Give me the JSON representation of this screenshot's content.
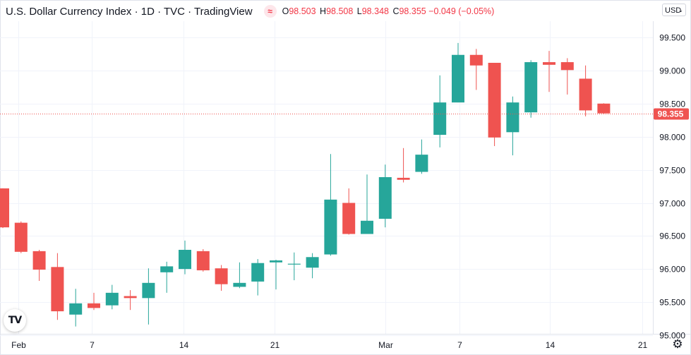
{
  "header": {
    "title": "U.S. Dollar Currency Index · 1D · TVC · TradingView",
    "badge": "≈",
    "ohlc": [
      {
        "label": "O",
        "value": "98.503"
      },
      {
        "label": "H",
        "value": "98.508"
      },
      {
        "label": "L",
        "value": "98.348"
      },
      {
        "label": "C",
        "value": "98.355"
      },
      {
        "label": "",
        "value": "−0.049 (−0.05%)"
      }
    ]
  },
  "currency_selector": {
    "label": "USD",
    "caret": "⌄"
  },
  "logo_text": "TV",
  "settings_icon": "⚙",
  "chart_data": {
    "type": "candlestick",
    "title": "U.S. Dollar Currency Index · 1D · TVC · TradingView",
    "up_color": "#26a69a",
    "down_color": "#ef5350",
    "last_price_label": "98.355",
    "ylim": [
      94.8,
      99.67
    ],
    "y_ticks": [
      "95.000",
      "95.500",
      "96.000",
      "96.500",
      "97.000",
      "97.500",
      "98.000",
      "98.500",
      "99.000",
      "99.500"
    ],
    "x_labels": [
      "Feb",
      "7",
      "14",
      "21",
      "Mar",
      "7",
      "14",
      "21"
    ],
    "candles": [
      {
        "date": "2022-01-28",
        "o": 97.22,
        "h": 97.22,
        "l": 96.62,
        "c": 96.63
      },
      {
        "date": "2022-01-31",
        "o": 96.7,
        "h": 96.72,
        "l": 96.24,
        "c": 96.26
      },
      {
        "date": "2022-02-01",
        "o": 96.27,
        "h": 96.29,
        "l": 95.82,
        "c": 95.99
      },
      {
        "date": "2022-02-02",
        "o": 96.03,
        "h": 96.24,
        "l": 95.23,
        "c": 95.36
      },
      {
        "date": "2022-02-03",
        "o": 95.31,
        "h": 95.7,
        "l": 95.13,
        "c": 95.48
      },
      {
        "date": "2022-02-04",
        "o": 95.48,
        "h": 95.64,
        "l": 95.38,
        "c": 95.41
      },
      {
        "date": "2022-02-07",
        "o": 95.45,
        "h": 95.76,
        "l": 95.39,
        "c": 95.64
      },
      {
        "date": "2022-02-08",
        "o": 95.59,
        "h": 95.68,
        "l": 95.38,
        "c": 95.56
      },
      {
        "date": "2022-02-09",
        "o": 95.56,
        "h": 96.01,
        "l": 95.16,
        "c": 95.79
      },
      {
        "date": "2022-02-10",
        "o": 95.95,
        "h": 96.11,
        "l": 95.64,
        "c": 96.04
      },
      {
        "date": "2022-02-11",
        "o": 96.0,
        "h": 96.43,
        "l": 95.92,
        "c": 96.29
      },
      {
        "date": "2022-02-14",
        "o": 96.27,
        "h": 96.3,
        "l": 95.96,
        "c": 95.98
      },
      {
        "date": "2022-02-15",
        "o": 96.01,
        "h": 96.06,
        "l": 95.67,
        "c": 95.77
      },
      {
        "date": "2022-02-16",
        "o": 95.73,
        "h": 96.1,
        "l": 95.71,
        "c": 95.79
      },
      {
        "date": "2022-02-17",
        "o": 95.81,
        "h": 96.15,
        "l": 95.6,
        "c": 96.09
      },
      {
        "date": "2022-02-18",
        "o": 96.1,
        "h": 96.14,
        "l": 95.69,
        "c": 96.13
      },
      {
        "date": "2022-02-22",
        "o": 96.07,
        "h": 96.25,
        "l": 95.83,
        "c": 96.08
      },
      {
        "date": "2022-02-23",
        "o": 96.02,
        "h": 96.24,
        "l": 95.86,
        "c": 96.18
      },
      {
        "date": "2022-02-24",
        "o": 96.22,
        "h": 97.74,
        "l": 96.2,
        "c": 97.05
      },
      {
        "date": "2022-02-25",
        "o": 97.0,
        "h": 97.22,
        "l": 96.52,
        "c": 96.53
      },
      {
        "date": "2022-02-28",
        "o": 96.53,
        "h": 97.43,
        "l": 96.53,
        "c": 96.73
      },
      {
        "date": "2022-03-01",
        "o": 96.76,
        "h": 97.58,
        "l": 96.63,
        "c": 97.39
      },
      {
        "date": "2022-03-02",
        "o": 97.38,
        "h": 97.83,
        "l": 97.31,
        "c": 97.35
      },
      {
        "date": "2022-03-03",
        "o": 97.47,
        "h": 97.96,
        "l": 97.44,
        "c": 97.73
      },
      {
        "date": "2022-03-04",
        "o": 98.03,
        "h": 98.93,
        "l": 97.84,
        "c": 98.52
      },
      {
        "date": "2022-03-07",
        "o": 98.52,
        "h": 99.42,
        "l": 98.52,
        "c": 99.24
      },
      {
        "date": "2022-03-08",
        "o": 99.24,
        "h": 99.33,
        "l": 98.71,
        "c": 99.08
      },
      {
        "date": "2022-03-09",
        "o": 99.12,
        "h": 99.12,
        "l": 97.86,
        "c": 97.99
      },
      {
        "date": "2022-03-10",
        "o": 98.07,
        "h": 98.61,
        "l": 97.72,
        "c": 98.52
      },
      {
        "date": "2022-03-11",
        "o": 98.37,
        "h": 99.16,
        "l": 98.29,
        "c": 99.13
      },
      {
        "date": "2022-03-14",
        "o": 99.13,
        "h": 99.3,
        "l": 98.68,
        "c": 99.09
      },
      {
        "date": "2022-03-15",
        "o": 99.13,
        "h": 99.19,
        "l": 98.64,
        "c": 99.01
      },
      {
        "date": "2022-03-16",
        "o": 98.88,
        "h": 99.08,
        "l": 98.31,
        "c": 98.4
      },
      {
        "date": "2022-03-17",
        "o": 98.503,
        "h": 98.508,
        "l": 98.348,
        "c": 98.355
      }
    ]
  }
}
